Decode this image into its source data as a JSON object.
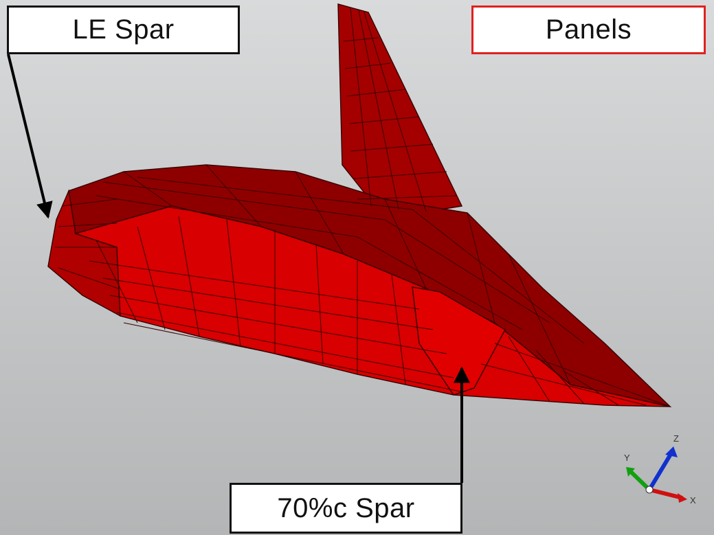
{
  "labels": {
    "le_spar": "LE Spar",
    "panels": "Panels",
    "spar_70c": "70%c Spar"
  },
  "triad": {
    "x": "X",
    "y": "Y",
    "z": "Z"
  },
  "colors": {
    "mesh_fill": "#d40000",
    "mesh_shadow": "#8a0000",
    "mesh_lines": "#3a0000",
    "panels_box_border": "#e02020",
    "triad_x": "#d01010",
    "triad_y": "#10a010",
    "triad_z": "#1030d0"
  }
}
